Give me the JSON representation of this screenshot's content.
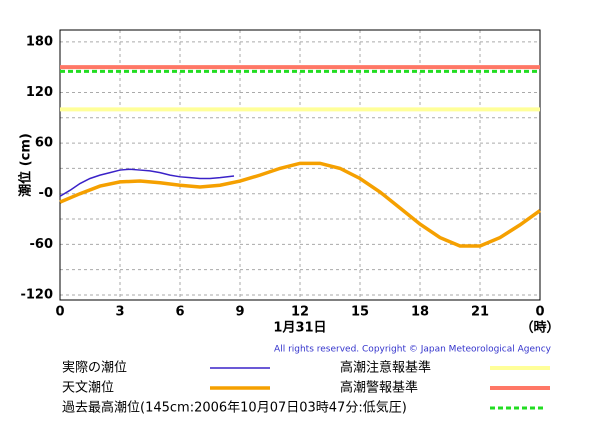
{
  "chart_data": {
    "type": "line",
    "ylabel": "潮位 (cm)",
    "xlabel": "1月31日",
    "xunit": "（時）",
    "copyright": "All rights reserved. Copyright © Japan Meteorological Agency",
    "xlim": [
      0,
      24
    ],
    "xticks": [
      0,
      3,
      6,
      9,
      12,
      15,
      18,
      21,
      {
        "value": 24,
        "label": "0"
      }
    ],
    "ylim": [
      -126,
      194
    ],
    "yticks": [
      180,
      120,
      60,
      {
        "value": 0,
        "label": "-0"
      },
      -60,
      -120
    ],
    "yminor": [
      150,
      90,
      30,
      -30,
      -90
    ],
    "grid": true,
    "series": [
      {
        "name": "実際の潮位",
        "color": "#3a22c8",
        "x": [
          0,
          0.5,
          1,
          1.5,
          2,
          2.5,
          3,
          3.5,
          4,
          4.5,
          5,
          5.5,
          6,
          6.5,
          7,
          7.5,
          8,
          8.7
        ],
        "values": [
          -3,
          4,
          12,
          18,
          22,
          25,
          28,
          29,
          28,
          27,
          25,
          22,
          20,
          19,
          18,
          18,
          19,
          21
        ]
      },
      {
        "name": "天文潮位",
        "color": "#f5a000",
        "x": [
          0,
          1,
          2,
          3,
          4,
          5,
          6,
          7,
          8,
          9,
          10,
          11,
          12,
          13,
          14,
          15,
          16,
          17,
          18,
          19,
          20,
          21,
          22,
          23,
          24
        ],
        "values": [
          -10,
          0,
          9,
          14,
          15,
          13,
          10,
          8,
          10,
          15,
          22,
          30,
          36,
          36,
          30,
          18,
          2,
          -17,
          -36,
          -52,
          -62,
          -62,
          -52,
          -37,
          -20
        ]
      }
    ],
    "hlines": [
      {
        "name": "高潮注意報基準",
        "color": "#ffff99",
        "value": 100
      },
      {
        "name": "高潮警報基準",
        "color": "#ff7766",
        "value": 150
      },
      {
        "name": "過去最高潮位(145cm:2006年10月07日03時47分:低気圧)",
        "color": "#22dd22",
        "value": 145,
        "dashed": true
      }
    ]
  }
}
